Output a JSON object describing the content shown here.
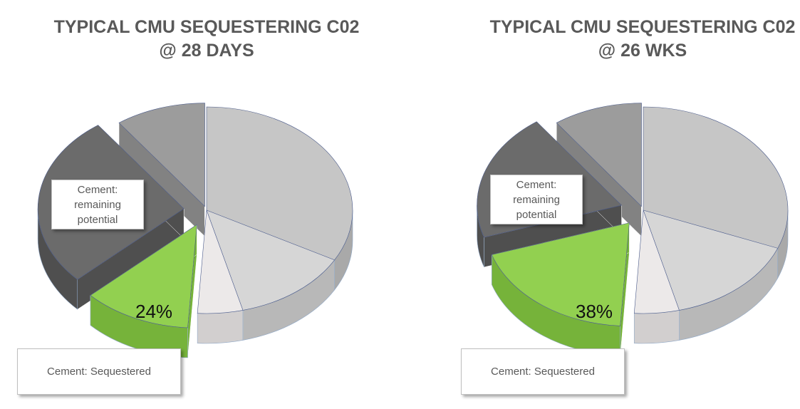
{
  "chart_data": [
    {
      "type": "pie",
      "title_line1": "TYPICAL CMU SEQUESTERING C02",
      "title_line2": "@ 28 DAYS",
      "slices": [
        {
          "name": "slice-light-large",
          "value": 33,
          "color": "#c6c6c6",
          "side": "#a9a9a9",
          "explode": 0
        },
        {
          "name": "slice-light-medium",
          "value": 13,
          "color": "#d6d6d6",
          "side": "#b8b8b8",
          "explode": 0
        },
        {
          "name": "slice-very-light",
          "value": 5,
          "color": "#ece9e9",
          "side": "#d2cfcf",
          "explode": 0
        },
        {
          "name": "slice-cement-sequestered",
          "value": 12,
          "color": "#92d050",
          "side": "#76b33a",
          "explode": 32
        },
        {
          "name": "slice-cement-remaining",
          "value": 27,
          "color": "#6b6b6b",
          "side": "#4f4f4f",
          "explode": 32
        },
        {
          "name": "slice-medium-gray",
          "value": 10,
          "color": "#9c9c9c",
          "side": "#828282",
          "explode": 8
        }
      ],
      "data_label": "24%",
      "label_remaining": "Cement: remaining potential",
      "label_sequestered": "Cement: Sequestered"
    },
    {
      "type": "pie",
      "title_line1": "TYPICAL CMU SEQUESTERING C02",
      "title_line2": "@ 26 WKS",
      "slices": [
        {
          "name": "slice-light-large",
          "value": 31,
          "color": "#c6c6c6",
          "side": "#a9a9a9",
          "explode": 0
        },
        {
          "name": "slice-light-medium",
          "value": 15,
          "color": "#d6d6d6",
          "side": "#b8b8b8",
          "explode": 0
        },
        {
          "name": "slice-very-light",
          "value": 5,
          "color": "#ece9e9",
          "side": "#d2cfcf",
          "explode": 0
        },
        {
          "name": "slice-cement-sequestered",
          "value": 19,
          "color": "#92d050",
          "side": "#76b33a",
          "explode": 32
        },
        {
          "name": "slice-cement-remaining",
          "value": 20,
          "color": "#6b6b6b",
          "side": "#4f4f4f",
          "explode": 32
        },
        {
          "name": "slice-medium-gray",
          "value": 10,
          "color": "#9c9c9c",
          "side": "#828282",
          "explode": 8
        }
      ],
      "data_label": "38%",
      "label_remaining": "Cement: remaining potential",
      "label_sequestered": "Cement: Sequestered"
    }
  ]
}
